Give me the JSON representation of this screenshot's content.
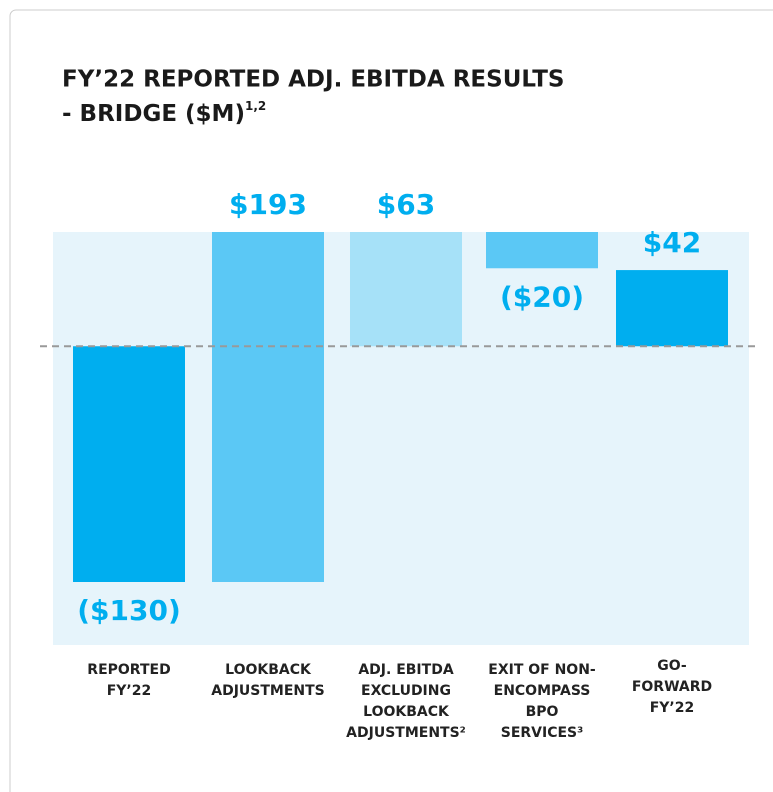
{
  "chart_data": {
    "type": "waterfall",
    "title": [
      "FY’22 REPORTED ADJ. EBITDA RESULTS",
      "- BRIDGE ($M)"
    ],
    "title_note": "1,2",
    "categories": [
      [
        "REPORTED",
        "FY’22"
      ],
      [
        "LOOKBACK",
        "ADJUSTMENTS"
      ],
      [
        "ADJ. EBITDA",
        "EXCLUDING",
        "LOOKBACK",
        "ADJUSTMENTS²"
      ],
      [
        "EXIT OF NON-",
        "ENCOMPASS",
        "BPO",
        "SERVICES³"
      ],
      [
        "GO-",
        "FORWARD",
        "FY’22"
      ]
    ],
    "values": [
      -130,
      193,
      63,
      -20,
      42
    ],
    "value_labels": [
      "($130)",
      "$193",
      "$63",
      "($20)",
      "$42"
    ],
    "measure": [
      "absolute",
      "relative",
      "absolute",
      "relative",
      "absolute"
    ],
    "colors": [
      "#00aeef",
      "#5bc8f5",
      "#a6e1f8",
      "#5bc8f5",
      "#00aeef"
    ]
  }
}
